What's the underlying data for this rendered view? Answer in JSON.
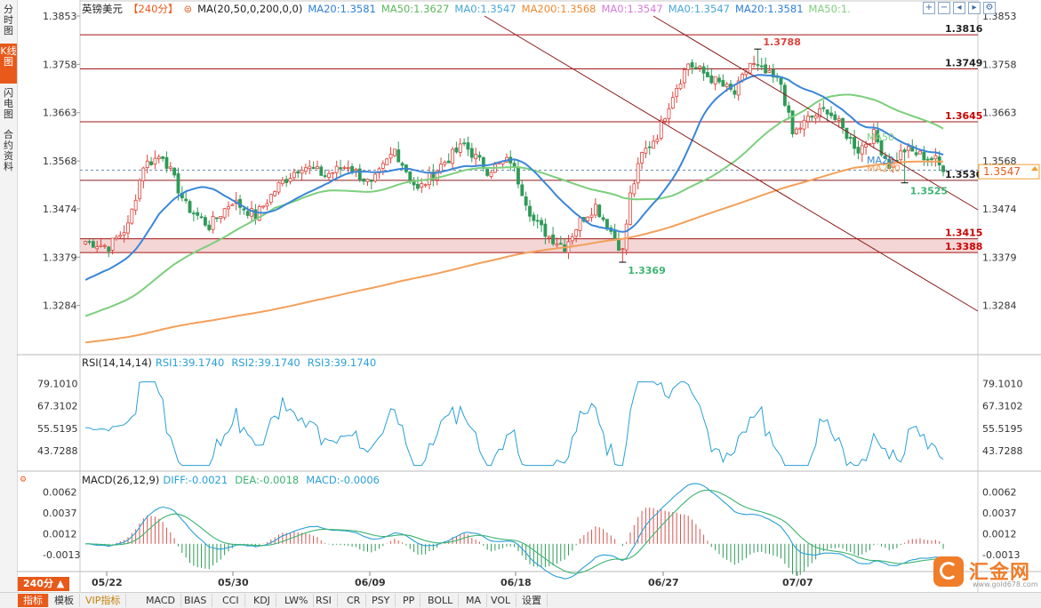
{
  "sidebar": {
    "tabs": [
      {
        "label": "分时图",
        "active": false
      },
      {
        "label": "K线图",
        "active": true
      },
      {
        "label": "闪电图",
        "active": false
      },
      {
        "label": "合约资料",
        "active": false
      }
    ]
  },
  "header": {
    "pair": "英镑美元",
    "period": "【240分】",
    "ma_params": "MA(20,50,0,200,0,0)",
    "ma_values": [
      {
        "text": "MA20:1.3581",
        "color": "#2f7fd8"
      },
      {
        "text": "MA50:1.3627",
        "color": "#5cb85c"
      },
      {
        "text": "MA0:1.3547",
        "color": "#48a7d8"
      },
      {
        "text": "MA200:1.3568",
        "color": "#f08a30"
      },
      {
        "text": "MA0:1.3547",
        "color": "#d57ad8"
      },
      {
        "text": "MA0:1.3547",
        "color": "#48a7d8"
      },
      {
        "text": "MA20:1.3581",
        "color": "#2f7fd8"
      },
      {
        "text": "MA50:1.",
        "color": "#7fcf7f"
      }
    ],
    "toolbar_icons": [
      "zoom-in-icon",
      "zoom-out-icon",
      "move-left-icon",
      "move-right-icon",
      "settings-icon"
    ]
  },
  "rsi_header": {
    "title": "RSI(14,14,14)",
    "values": [
      {
        "text": "RSI1:39.1740",
        "color": "#2a9fd6"
      },
      {
        "text": "RSI2:39.1740",
        "color": "#2a9fd6"
      },
      {
        "text": "RSI3:39.1740",
        "color": "#2a9fd6"
      }
    ]
  },
  "macd_header": {
    "title": "MACD(26,12,9)",
    "values": [
      {
        "text": "DIFF:-0.0021",
        "color": "#2a9fd6"
      },
      {
        "text": "DEA:-0.0018",
        "color": "#3cb371"
      },
      {
        "text": "MACD:-0.0006",
        "color": "#2a9fd6"
      }
    ]
  },
  "chart_data": {
    "type": "candlestick",
    "price_axis": {
      "ticks": [
        "1.3853",
        "1.3758",
        "1.3663",
        "1.3568",
        "1.3474",
        "1.3379",
        "1.3284"
      ],
      "ylim": [
        1.3189,
        1.3853
      ]
    },
    "date_labels": [
      "05/22",
      "05/30",
      "06/09",
      "06/18",
      "06/27",
      "07/07"
    ],
    "last_price": "1.3547",
    "levels": [
      {
        "value": 1.3816,
        "label": "1.3816"
      },
      {
        "value": 1.3749,
        "label": "1.3749"
      },
      {
        "value": 1.3645,
        "label": "1.3645"
      },
      {
        "value": 1.353,
        "label": "1.3530"
      },
      {
        "value": 1.3415,
        "label": "1.3415"
      },
      {
        "value": 1.3388,
        "label": "1.3388"
      }
    ],
    "support_zone": [
      1.3388,
      1.3415
    ],
    "annotations": [
      {
        "label": "1.3788",
        "value": 1.3788,
        "color": "#e0413a"
      },
      {
        "label": "1.3525",
        "value": 1.3525,
        "color": "#3cb371"
      },
      {
        "label": "1.3369",
        "value": 1.3369,
        "color": "#3cb371"
      }
    ],
    "ma_labels": [
      "MA50",
      "MA20",
      "MA200"
    ],
    "ma_colors": {
      "MA20": "#3a86d8",
      "MA50": "#7ccf7c",
      "MA200": "#f3a05a"
    },
    "close_anchors": [
      [
        0,
        1.341
      ],
      [
        6,
        1.34
      ],
      [
        11,
        1.344
      ],
      [
        15,
        1.356
      ],
      [
        20,
        1.358
      ],
      [
        26,
        1.348
      ],
      [
        32,
        1.344
      ],
      [
        38,
        1.349
      ],
      [
        44,
        1.346
      ],
      [
        50,
        1.352
      ],
      [
        56,
        1.356
      ],
      [
        62,
        1.354
      ],
      [
        68,
        1.356
      ],
      [
        74,
        1.352
      ],
      [
        80,
        1.359
      ],
      [
        86,
        1.351
      ],
      [
        92,
        1.356
      ],
      [
        98,
        1.36
      ],
      [
        104,
        1.355
      ],
      [
        110,
        1.357
      ],
      [
        116,
        1.345
      ],
      [
        120,
        1.342
      ],
      [
        124,
        1.34
      ],
      [
        128,
        1.345
      ],
      [
        132,
        1.348
      ],
      [
        136,
        1.343
      ],
      [
        139,
        1.339
      ],
      [
        141,
        1.35
      ],
      [
        144,
        1.358
      ],
      [
        148,
        1.362
      ],
      [
        152,
        1.37
      ],
      [
        156,
        1.376
      ],
      [
        160,
        1.374
      ],
      [
        164,
        1.372
      ],
      [
        168,
        1.37
      ],
      [
        172,
        1.376
      ],
      [
        176,
        1.374
      ],
      [
        180,
        1.372
      ],
      [
        183,
        1.362
      ],
      [
        187,
        1.365
      ],
      [
        192,
        1.367
      ],
      [
        196,
        1.363
      ],
      [
        200,
        1.359
      ],
      [
        204,
        1.362
      ],
      [
        208,
        1.356
      ],
      [
        212,
        1.359
      ],
      [
        216,
        1.358
      ],
      [
        220,
        1.357
      ],
      [
        222,
        1.3547
      ]
    ],
    "rsi": {
      "ticks": [
        "79.1010",
        "67.3102",
        "55.5195",
        "43.7288"
      ],
      "ylim": [
        33.0,
        84.5
      ],
      "current": 39.174
    },
    "macd": {
      "ticks": [
        "0.0062",
        "0.0037",
        "0.0012",
        "-0.0013"
      ],
      "ylim": [
        -0.003,
        0.007
      ],
      "diff": -0.0021,
      "dea": -0.0018,
      "macd": -0.0006
    }
  },
  "bottom_tabs": [
    {
      "label": "指标",
      "active": true
    },
    {
      "label": "模板"
    },
    {
      "label": "VIP指标",
      "vip": true
    },
    {
      "label": "MACD"
    },
    {
      "label": "BIAS"
    },
    {
      "label": "CCI"
    },
    {
      "label": "KDJ"
    },
    {
      "label": "LW%"
    },
    {
      "label": "RSI"
    },
    {
      "label": "CR"
    },
    {
      "label": "PSY"
    },
    {
      "label": "PP"
    },
    {
      "label": "BOLL"
    },
    {
      "label": "MA"
    },
    {
      "label": "VOL"
    },
    {
      "label": "设置"
    }
  ],
  "period_button": "240分 ▲",
  "logo": {
    "brand": "汇金网",
    "site": "www.gold678.com"
  }
}
